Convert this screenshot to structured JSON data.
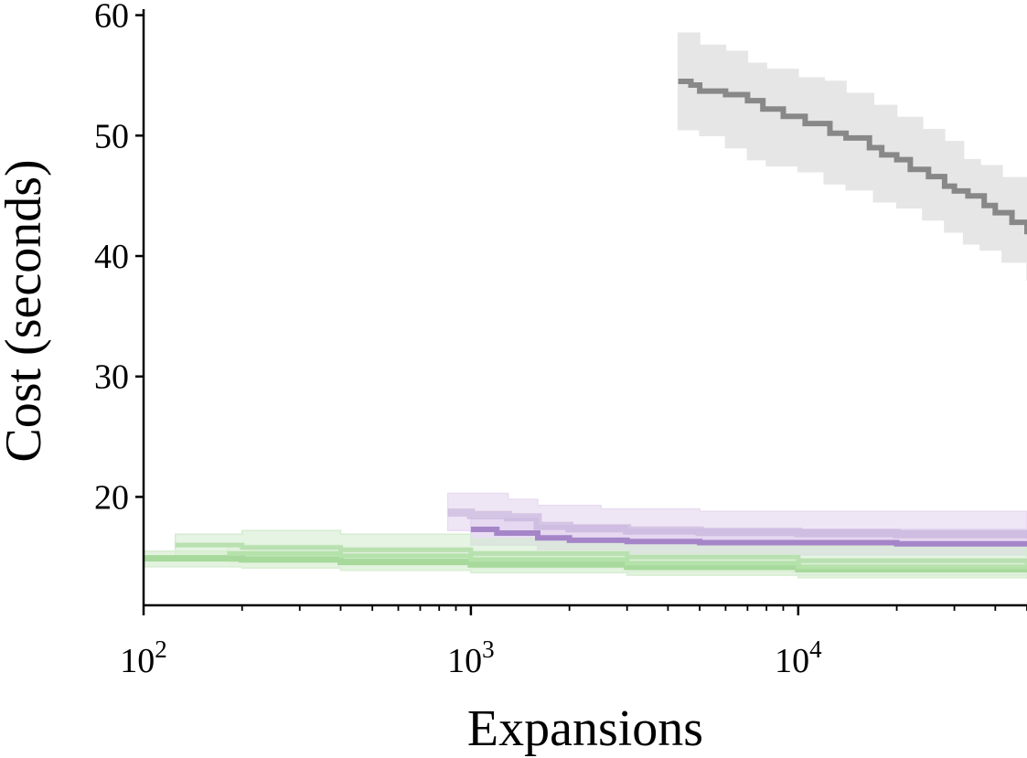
{
  "chart_data": {
    "type": "line",
    "title": "",
    "xlabel": "Expansions",
    "ylabel": "Cost (seconds)",
    "xscale": "log",
    "xlim": [
      100,
      50000
    ],
    "ylim": [
      11,
      60.5
    ],
    "xticks": [
      {
        "value": 100,
        "base": "10",
        "exp": "2"
      },
      {
        "value": 1000,
        "base": "10",
        "exp": "3"
      },
      {
        "value": 10000,
        "base": "10",
        "exp": "4"
      }
    ],
    "yticks": [
      {
        "value": 20,
        "label": "20"
      },
      {
        "value": 30,
        "label": "30"
      },
      {
        "value": 40,
        "label": "40"
      },
      {
        "value": 50,
        "label": "50"
      },
      {
        "value": 60,
        "label": "60"
      }
    ],
    "grid": false,
    "legend": "none",
    "series": [
      {
        "color": "#888888",
        "band_color": "#e6e6e6",
        "band_alpha": 1,
        "line_alpha": 1,
        "line_width": 6,
        "points": [
          [
            4300,
            54.5
          ],
          [
            4700,
            54.2
          ],
          [
            5000,
            53.7
          ],
          [
            6000,
            53.4
          ],
          [
            7000,
            52.9
          ],
          [
            7800,
            52.2
          ],
          [
            9000,
            51.6
          ],
          [
            10500,
            51.0
          ],
          [
            12500,
            50.2
          ],
          [
            14000,
            49.8
          ],
          [
            16500,
            49.0
          ],
          [
            18000,
            48.4
          ],
          [
            20000,
            48.0
          ],
          [
            22000,
            47.2
          ],
          [
            25000,
            46.6
          ],
          [
            28000,
            45.8
          ],
          [
            30000,
            45.4
          ],
          [
            33000,
            45.0
          ],
          [
            37000,
            44.2
          ],
          [
            40000,
            43.6
          ],
          [
            45000,
            42.8
          ],
          [
            50000,
            41.8
          ]
        ],
        "upper": [
          [
            4300,
            58.5
          ],
          [
            5000,
            57.5
          ],
          [
            6000,
            57.0
          ],
          [
            7000,
            56.0
          ],
          [
            8000,
            55.5
          ],
          [
            10000,
            54.8
          ],
          [
            12000,
            54.5
          ],
          [
            14000,
            53.5
          ],
          [
            17000,
            52.5
          ],
          [
            20000,
            51.5
          ],
          [
            24000,
            50.5
          ],
          [
            28000,
            49.5
          ],
          [
            32000,
            48.0
          ],
          [
            36000,
            47.5
          ],
          [
            42000,
            46.5
          ],
          [
            50000,
            45.0
          ]
        ],
        "lower": [
          [
            4300,
            50.5
          ],
          [
            5000,
            50.0
          ],
          [
            6000,
            49.0
          ],
          [
            7000,
            48.0
          ],
          [
            8000,
            47.5
          ],
          [
            10000,
            47.0
          ],
          [
            12000,
            46.0
          ],
          [
            14000,
            45.5
          ],
          [
            17000,
            44.5
          ],
          [
            20000,
            44.0
          ],
          [
            24000,
            43.0
          ],
          [
            28000,
            42.0
          ],
          [
            32000,
            41.0
          ],
          [
            36000,
            40.5
          ],
          [
            42000,
            39.5
          ],
          [
            50000,
            38.0
          ]
        ]
      },
      {
        "color": "#b69dd0",
        "band_color": "#e8dcf1",
        "band_alpha": 0.7,
        "line_alpha": 0.45,
        "line_width": 9,
        "points": [
          [
            850,
            18.7
          ],
          [
            1000,
            18.5
          ],
          [
            1300,
            18.3
          ],
          [
            1600,
            17.6
          ],
          [
            2000,
            17.4
          ],
          [
            3000,
            17.2
          ],
          [
            5000,
            17.1
          ],
          [
            10000,
            17.0
          ],
          [
            20000,
            16.9
          ],
          [
            50000,
            16.8
          ]
        ],
        "upper": [
          [
            850,
            20.3
          ],
          [
            1300,
            19.8
          ],
          [
            1600,
            19.3
          ],
          [
            2500,
            19.0
          ],
          [
            5000,
            18.8
          ],
          [
            50000,
            18.7
          ]
        ],
        "lower": [
          [
            850,
            17.2
          ],
          [
            1300,
            16.9
          ],
          [
            1600,
            16.4
          ],
          [
            3000,
            16.2
          ],
          [
            50000,
            16.0
          ]
        ]
      },
      {
        "color": "#a585c8",
        "band_color": "#e2d4ef",
        "band_alpha": 0.8,
        "line_alpha": 1,
        "line_width": 6,
        "points": [
          [
            1000,
            17.3
          ],
          [
            1200,
            17.0
          ],
          [
            1600,
            16.6
          ],
          [
            2000,
            16.4
          ],
          [
            3000,
            16.3
          ],
          [
            5000,
            16.2
          ],
          [
            10000,
            16.2
          ],
          [
            20000,
            16.1
          ],
          [
            50000,
            16.1
          ]
        ],
        "upper": [
          [
            1000,
            18.2
          ],
          [
            1600,
            17.6
          ],
          [
            3000,
            17.3
          ],
          [
            50000,
            17.2
          ]
        ],
        "lower": [
          [
            1000,
            16.0
          ],
          [
            1600,
            15.4
          ],
          [
            3000,
            15.2
          ],
          [
            50000,
            15.1
          ]
        ]
      },
      {
        "color": "#b9e0b0",
        "band_color": "#d4ecd0",
        "band_alpha": 0.6,
        "line_alpha": 1,
        "line_width": 5,
        "points": [
          [
            125,
            16.0
          ],
          [
            200,
            15.8
          ],
          [
            400,
            15.6
          ],
          [
            1000,
            15.3
          ],
          [
            3000,
            15.0
          ],
          [
            10000,
            14.7
          ],
          [
            50000,
            14.4
          ]
        ],
        "upper": [
          [
            125,
            16.9
          ],
          [
            200,
            17.2
          ],
          [
            400,
            16.9
          ],
          [
            1000,
            16.5
          ],
          [
            3000,
            16.2
          ],
          [
            10000,
            15.9
          ],
          [
            50000,
            15.6
          ]
        ],
        "lower": [
          [
            125,
            15.1
          ],
          [
            200,
            14.9
          ],
          [
            400,
            14.7
          ],
          [
            1000,
            14.4
          ],
          [
            3000,
            14.2
          ],
          [
            10000,
            13.9
          ],
          [
            50000,
            13.6
          ]
        ]
      },
      {
        "color": "#a6d99b",
        "band_color": "#d7eed2",
        "band_alpha": 0.7,
        "line_alpha": 1,
        "line_width": 7,
        "points": [
          [
            100,
            14.9
          ],
          [
            200,
            14.8
          ],
          [
            400,
            14.6
          ],
          [
            1000,
            14.4
          ],
          [
            3000,
            14.2
          ],
          [
            10000,
            14.0
          ],
          [
            50000,
            13.9
          ]
        ],
        "upper": [
          [
            100,
            15.5
          ],
          [
            200,
            15.5
          ],
          [
            400,
            15.3
          ],
          [
            1000,
            15.1
          ],
          [
            3000,
            14.9
          ],
          [
            10000,
            14.7
          ],
          [
            50000,
            14.6
          ]
        ],
        "lower": [
          [
            100,
            14.2
          ],
          [
            200,
            14.1
          ],
          [
            400,
            13.9
          ],
          [
            1000,
            13.7
          ],
          [
            3000,
            13.5
          ],
          [
            10000,
            13.3
          ],
          [
            50000,
            13.2
          ]
        ]
      },
      {
        "color": "#b4e2aa",
        "band_color": "#dcefd8",
        "band_alpha": 0.6,
        "line_alpha": 1,
        "line_width": 5,
        "points": [
          [
            180,
            15.3
          ],
          [
            400,
            15.1
          ],
          [
            1000,
            14.8
          ],
          [
            3000,
            14.5
          ],
          [
            10000,
            14.2
          ],
          [
            50000,
            14.0
          ]
        ],
        "upper": [
          [
            180,
            16.0
          ],
          [
            400,
            15.8
          ],
          [
            1000,
            15.5
          ],
          [
            3000,
            15.2
          ],
          [
            10000,
            14.9
          ],
          [
            50000,
            14.7
          ]
        ],
        "lower": [
          [
            180,
            14.6
          ],
          [
            400,
            14.4
          ],
          [
            1000,
            14.1
          ],
          [
            3000,
            13.8
          ],
          [
            10000,
            13.5
          ],
          [
            50000,
            13.3
          ]
        ]
      }
    ]
  }
}
